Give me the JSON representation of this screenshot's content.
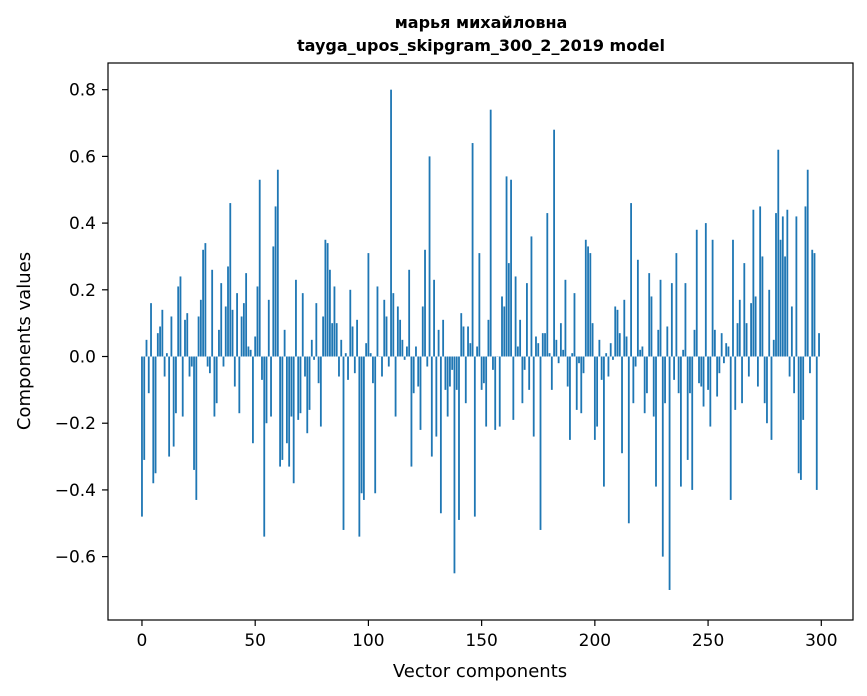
{
  "chart_data": {
    "type": "bar",
    "title_line1": "марья михайловна",
    "title_line2": "tayga_upos_skipgram_300_2_2019 model",
    "xlabel": "Vector components",
    "ylabel": "Components values",
    "xlim": [
      -15,
      314
    ],
    "ylim": [
      -0.79,
      0.88
    ],
    "xticks": [
      0,
      50,
      100,
      150,
      200,
      250,
      300
    ],
    "xtick_labels": [
      "0",
      "50",
      "100",
      "150",
      "200",
      "250",
      "300"
    ],
    "yticks": [
      -0.6,
      -0.4,
      -0.2,
      0.0,
      0.2,
      0.4,
      0.6,
      0.8
    ],
    "ytick_labels": [
      "−0.6",
      "−0.4",
      "−0.2",
      "0.0",
      "0.2",
      "0.4",
      "0.6",
      "0.8"
    ],
    "bar_color": "#1f77b4",
    "grid": false,
    "x": "component index 0..299",
    "values": [
      -0.48,
      -0.31,
      0.05,
      -0.11,
      0.16,
      -0.38,
      -0.35,
      0.07,
      0.09,
      0.14,
      -0.06,
      0.01,
      -0.3,
      0.12,
      -0.27,
      -0.17,
      0.21,
      0.24,
      -0.18,
      0.11,
      0.13,
      -0.06,
      -0.03,
      -0.34,
      -0.43,
      0.12,
      0.17,
      0.32,
      0.34,
      -0.03,
      -0.05,
      0.26,
      -0.18,
      -0.14,
      0.08,
      0.22,
      -0.03,
      0.15,
      0.27,
      0.46,
      0.14,
      -0.09,
      0.19,
      -0.17,
      0.12,
      0.16,
      0.25,
      0.03,
      0.02,
      -0.26,
      0.06,
      0.21,
      0.53,
      -0.07,
      -0.54,
      -0.2,
      0.17,
      -0.18,
      0.33,
      0.45,
      0.56,
      -0.33,
      -0.31,
      0.08,
      -0.26,
      -0.33,
      -0.18,
      -0.38,
      0.23,
      -0.19,
      -0.17,
      0.19,
      -0.06,
      -0.23,
      -0.16,
      0.05,
      -0.01,
      0.16,
      -0.08,
      -0.21,
      0.12,
      0.35,
      0.34,
      0.26,
      0.1,
      0.21,
      0.1,
      -0.06,
      0.05,
      -0.52,
      0.01,
      -0.07,
      0.2,
      0.09,
      -0.05,
      0.11,
      -0.54,
      -0.41,
      -0.43,
      0.04,
      0.31,
      0.01,
      -0.08,
      -0.41,
      0.21,
      0.0,
      -0.06,
      0.17,
      0.12,
      -0.03,
      0.8,
      0.19,
      -0.18,
      0.15,
      0.11,
      0.05,
      -0.01,
      0.03,
      0.26,
      -0.33,
      -0.11,
      0.03,
      -0.09,
      -0.22,
      0.15,
      0.32,
      -0.03,
      0.6,
      -0.3,
      0.23,
      -0.24,
      0.08,
      -0.47,
      0.11,
      -0.1,
      -0.18,
      -0.09,
      -0.04,
      -0.65,
      -0.1,
      -0.49,
      0.13,
      0.09,
      -0.14,
      0.09,
      0.04,
      0.64,
      -0.48,
      0.03,
      0.31,
      -0.1,
      -0.08,
      -0.21,
      0.11,
      0.74,
      -0.04,
      -0.22,
      0.0,
      -0.21,
      0.18,
      0.15,
      0.54,
      0.28,
      0.53,
      -0.19,
      0.24,
      0.03,
      0.11,
      -0.14,
      -0.04,
      0.22,
      -0.1,
      0.36,
      -0.24,
      0.06,
      0.04,
      -0.52,
      0.07,
      0.07,
      0.43,
      0.01,
      -0.1,
      0.68,
      0.05,
      -0.02,
      0.1,
      0.02,
      0.23,
      -0.09,
      -0.25,
      0.01,
      0.19,
      -0.16,
      -0.02,
      -0.17,
      -0.05,
      0.35,
      0.33,
      0.31,
      0.1,
      -0.25,
      -0.21,
      0.05,
      -0.07,
      -0.39,
      0.01,
      -0.06,
      0.04,
      -0.01,
      0.15,
      0.14,
      0.07,
      -0.29,
      0.17,
      0.06,
      -0.5,
      0.46,
      -0.14,
      -0.03,
      0.29,
      0.02,
      0.03,
      -0.17,
      -0.11,
      0.25,
      0.18,
      -0.18,
      -0.39,
      0.08,
      0.23,
      -0.6,
      -0.14,
      0.09,
      -0.7,
      0.22,
      -0.07,
      0.31,
      -0.11,
      -0.39,
      0.02,
      0.22,
      -0.31,
      -0.11,
      -0.4,
      0.08,
      0.38,
      -0.08,
      -0.09,
      -0.15,
      0.4,
      -0.1,
      -0.21,
      0.35,
      0.08,
      -0.12,
      -0.05,
      0.07,
      -0.02,
      0.04,
      0.03,
      -0.43,
      0.35,
      -0.16,
      0.1,
      0.17,
      -0.14,
      0.28,
      0.1,
      -0.06,
      0.16,
      0.44,
      0.18,
      -0.09,
      0.45,
      0.3,
      -0.14,
      -0.2,
      0.2,
      -0.25,
      0.05,
      0.43,
      0.62,
      0.35,
      0.42,
      0.3,
      0.44,
      -0.06,
      0.15,
      -0.11,
      0.42,
      -0.35,
      -0.37,
      -0.19,
      0.45,
      0.56,
      -0.05,
      0.32,
      0.31,
      -0.4,
      0.07
    ]
  }
}
